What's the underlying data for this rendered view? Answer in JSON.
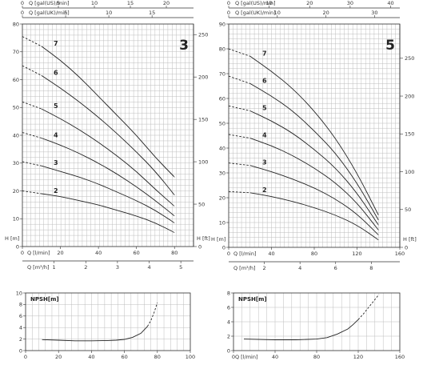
{
  "chart_data": [
    {
      "id": "c1",
      "type": "line",
      "model_label": "3",
      "xlabel": "Q [l/min]",
      "ylabel_left": "H [m]",
      "ylabel_right": "H [ft]",
      "top_axis1_label": "Q [gal(US)/min]",
      "top_axis2_label": "Q [gal(UK)/min]",
      "bottom_axis2_label": "Q [m³/h]",
      "xlim": [
        0,
        90
      ],
      "ylim": [
        0,
        80
      ],
      "xticks": [
        0,
        20,
        40,
        60,
        80
      ],
      "yticks": [
        0,
        10,
        20,
        30,
        40,
        50,
        60,
        70,
        80
      ],
      "ft_ticks": [
        0,
        50,
        100,
        150,
        200,
        250
      ],
      "m3h_ticks": [
        1,
        2,
        3,
        4,
        5
      ],
      "usgpm_ticks": [
        0,
        5,
        10,
        15,
        20
      ],
      "ukgpm_ticks": [
        0,
        5,
        10,
        15
      ],
      "series": [
        {
          "name": "7",
          "x": [
            0,
            10,
            20,
            30,
            40,
            50,
            60,
            70,
            80
          ],
          "y": [
            75.5,
            72,
            67,
            61,
            54,
            47,
            40,
            32,
            25
          ],
          "dashed_to": 10
        },
        {
          "name": "6",
          "x": [
            0,
            10,
            20,
            30,
            40,
            50,
            60,
            70,
            80
          ],
          "y": [
            65,
            61.5,
            57,
            52,
            46.5,
            40.5,
            34,
            27,
            18.5
          ],
          "dashed_to": 10
        },
        {
          "name": "5",
          "x": [
            0,
            10,
            20,
            30,
            40,
            50,
            60,
            70,
            80
          ],
          "y": [
            52,
            49.5,
            46,
            42,
            37.5,
            32.5,
            27,
            20.5,
            14.5
          ],
          "dashed_to": 10
        },
        {
          "name": "4",
          "x": [
            0,
            10,
            20,
            30,
            40,
            50,
            60,
            70,
            80
          ],
          "y": [
            41,
            39,
            36.5,
            33.5,
            30,
            26,
            21.5,
            16.5,
            11
          ],
          "dashed_to": 10
        },
        {
          "name": "3",
          "x": [
            0,
            10,
            20,
            30,
            40,
            50,
            60,
            70,
            80
          ],
          "y": [
            30.5,
            29,
            27,
            25,
            22.5,
            19.5,
            16.5,
            13,
            8.5
          ],
          "dashed_to": 10
        },
        {
          "name": "2",
          "x": [
            0,
            10,
            20,
            30,
            40,
            50,
            60,
            70,
            80
          ],
          "y": [
            20,
            19,
            18,
            16.5,
            15,
            13,
            11,
            8.5,
            5
          ],
          "dashed_to": 10
        }
      ]
    },
    {
      "id": "c2",
      "type": "line",
      "model_label": "5",
      "xlabel": "Q [l/min]",
      "ylabel_left": "H [m]",
      "ylabel_right": "H [ft]",
      "top_axis1_label": "Q [gal(US)/min]",
      "top_axis2_label": "Q [gal(UK)/min]",
      "bottom_axis2_label": "Q [m³/h]",
      "xlim": [
        0,
        160
      ],
      "ylim": [
        0,
        90
      ],
      "xticks": [
        0,
        40,
        80,
        120,
        160
      ],
      "yticks": [
        0,
        10,
        20,
        30,
        40,
        50,
        60,
        70,
        80,
        90
      ],
      "ft_ticks": [
        0,
        50,
        100,
        150,
        200,
        250
      ],
      "m3h_ticks": [
        2,
        4,
        6,
        8
      ],
      "usgpm_ticks": [
        0,
        10,
        20,
        30,
        40
      ],
      "ukgpm_ticks": [
        0,
        10,
        20,
        30
      ],
      "series": [
        {
          "name": "7",
          "x": [
            0,
            20,
            40,
            60,
            80,
            100,
            120,
            140
          ],
          "y": [
            80,
            77,
            71,
            64,
            55,
            44,
            30,
            13
          ],
          "dashed_to": 20
        },
        {
          "name": "6",
          "x": [
            0,
            20,
            40,
            60,
            80,
            100,
            120,
            140
          ],
          "y": [
            69,
            66,
            61,
            55,
            47,
            38,
            26,
            11
          ],
          "dashed_to": 20
        },
        {
          "name": "5",
          "x": [
            0,
            20,
            40,
            60,
            80,
            100,
            120,
            140
          ],
          "y": [
            57,
            55,
            51,
            46,
            39.5,
            32,
            22,
            9
          ],
          "dashed_to": 20
        },
        {
          "name": "4",
          "x": [
            0,
            20,
            40,
            60,
            80,
            100,
            120,
            140
          ],
          "y": [
            45.5,
            44,
            41,
            37,
            32,
            26,
            18,
            7
          ],
          "dashed_to": 20
        },
        {
          "name": "3",
          "x": [
            0,
            20,
            40,
            60,
            80,
            100,
            120,
            140
          ],
          "y": [
            34,
            33,
            30.5,
            27.5,
            24,
            19.5,
            13.5,
            5
          ],
          "dashed_to": 20
        },
        {
          "name": "2",
          "x": [
            0,
            20,
            40,
            60,
            80,
            100,
            120,
            140
          ],
          "y": [
            22.5,
            22,
            20.5,
            18.5,
            16,
            13,
            9,
            3
          ],
          "dashed_to": 20
        }
      ]
    },
    {
      "id": "c3",
      "type": "line",
      "title": "NPSH[m]",
      "xlim": [
        0,
        100
      ],
      "ylim": [
        0,
        10
      ],
      "xticks": [
        0,
        20,
        40,
        60,
        80,
        100
      ],
      "yticks": [
        0,
        2,
        4,
        6,
        8,
        10
      ],
      "series": [
        {
          "x": [
            10,
            20,
            30,
            40,
            50,
            55,
            60,
            65,
            70,
            74,
            76,
            78,
            80
          ],
          "y": [
            1.9,
            1.8,
            1.7,
            1.7,
            1.75,
            1.8,
            1.95,
            2.3,
            3.0,
            4.2,
            5.2,
            6.6,
            8.3
          ],
          "dashed_from": 74
        }
      ]
    },
    {
      "id": "c4",
      "type": "line",
      "title": "NPSH[m]",
      "xlabel": "Q [l/min]",
      "xlim": [
        0,
        160
      ],
      "ylim": [
        0,
        8
      ],
      "xticks": [
        0,
        40,
        80,
        120,
        160
      ],
      "yticks": [
        0,
        2,
        4,
        6,
        8
      ],
      "series": [
        {
          "x": [
            10,
            40,
            60,
            80,
            90,
            100,
            110,
            115,
            120,
            125,
            130,
            135,
            140
          ],
          "y": [
            1.6,
            1.5,
            1.5,
            1.6,
            1.8,
            2.3,
            3.0,
            3.6,
            4.3,
            5.1,
            6.0,
            6.9,
            7.8
          ],
          "dashed_from": 120
        }
      ]
    }
  ]
}
